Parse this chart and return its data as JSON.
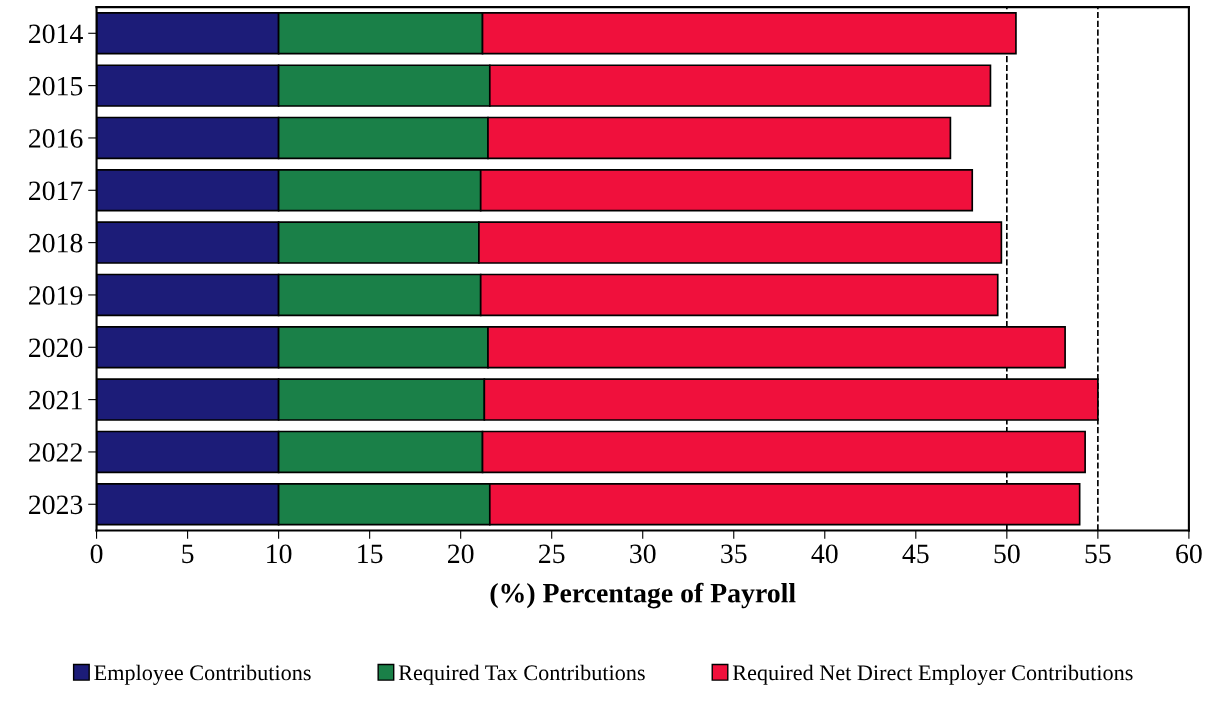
{
  "chart_data": {
    "type": "bar",
    "orientation": "horizontal",
    "stacked": true,
    "xlabel": "(%) Percentage of Payroll",
    "categories": [
      "2014",
      "2015",
      "2016",
      "2017",
      "2018",
      "2019",
      "2020",
      "2021",
      "2022",
      "2023"
    ],
    "series": [
      {
        "name": "Employee Contributions",
        "color": "#1c1c78",
        "values": [
          10,
          10,
          10,
          10,
          10,
          10,
          10,
          10,
          10,
          10
        ]
      },
      {
        "name": "Required Tax Contributions",
        "color": "#1a8048",
        "values": [
          11.2,
          11.6,
          11.5,
          11.1,
          11.0,
          11.1,
          11.5,
          11.3,
          11.2,
          11.6
        ]
      },
      {
        "name": "Required Net Direct Employer Contributions",
        "color": "#f0103c",
        "values": [
          29.3,
          27.5,
          25.4,
          27.0,
          28.7,
          28.4,
          31.7,
          33.7,
          33.1,
          32.4
        ]
      }
    ],
    "xlim": [
      0,
      60
    ],
    "xticks": [
      0,
      5,
      10,
      15,
      20,
      25,
      30,
      35,
      40,
      45,
      50,
      55,
      60
    ],
    "ref_lines": [
      {
        "axis": "x",
        "value": 50,
        "color": "#000000",
        "line_style": "dashed"
      },
      {
        "axis": "x",
        "value": 55,
        "color": "#000000",
        "line_style": "dashed"
      }
    ],
    "grid": false,
    "legend": "bottom"
  }
}
